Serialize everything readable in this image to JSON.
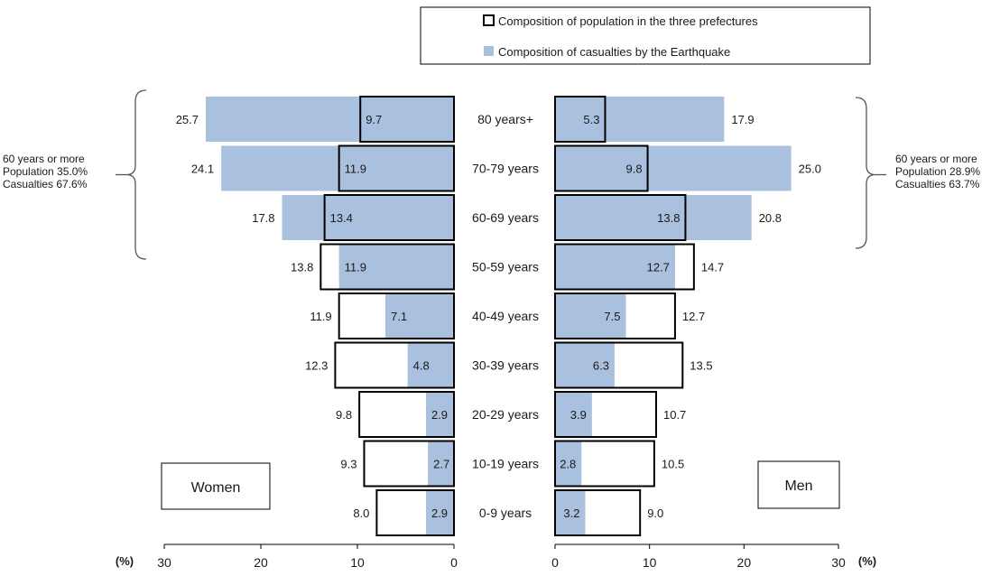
{
  "colors": {
    "casualty_fill": "#a9c0de",
    "population_stroke": "#000000",
    "text": "#1a1a1a"
  },
  "legend": {
    "population": "Composition of population in the three prefectures",
    "casualties": "Composition of casualties by the Earthquake"
  },
  "chart_data": {
    "type": "bar",
    "orientation": "horizontal-butterfly",
    "categories": [
      "80 years+",
      "70-79 years",
      "60-69 years",
      "50-59 years",
      "40-49 years",
      "30-39 years",
      "20-29 years",
      "10-19 years",
      "0-9 years"
    ],
    "panels": [
      {
        "name": "Women",
        "side": "left",
        "population": [
          9.7,
          11.9,
          13.4,
          13.8,
          11.9,
          12.3,
          9.8,
          9.3,
          8.0
        ],
        "casualties": [
          25.7,
          24.1,
          17.8,
          11.9,
          7.1,
          4.8,
          2.9,
          2.7,
          2.9
        ],
        "xlim": [
          0,
          30
        ],
        "ticks": [
          "30",
          "20",
          "10",
          "0"
        ],
        "unit": "(%)",
        "bracket_label": [
          "60 years or more",
          "Population  35.0%",
          "Casualties  67.6%"
        ]
      },
      {
        "name": "Men",
        "side": "right",
        "population": [
          5.3,
          9.8,
          13.8,
          14.7,
          12.7,
          13.5,
          10.7,
          10.5,
          9.0
        ],
        "casualties": [
          17.9,
          25.0,
          20.8,
          12.7,
          7.5,
          6.3,
          3.9,
          2.8,
          3.2
        ],
        "xlim": [
          0,
          30
        ],
        "ticks": [
          "0",
          "10",
          "20",
          "30"
        ],
        "unit": "(%)",
        "bracket_label": [
          "60 years or more",
          "Population  28.9%",
          "Casualties  63.7%"
        ]
      }
    ],
    "legend_position": "top-center"
  }
}
